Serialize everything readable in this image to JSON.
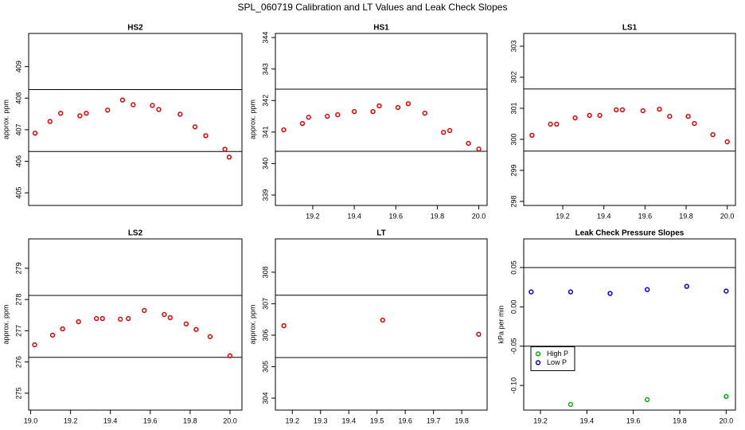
{
  "title": "SPL_060719  Calibration and LT Values and Leak Check Slopes",
  "chart_data": [
    {
      "type": "scatter",
      "title": "HS2",
      "ylabel": "approx. ppm",
      "color": "#e00000",
      "x": [
        19.05,
        19.12,
        19.17,
        19.26,
        19.29,
        19.39,
        19.46,
        19.51,
        19.6,
        19.63,
        19.73,
        19.8,
        19.85,
        19.94,
        19.96
      ],
      "values": [
        406.89,
        407.26,
        407.52,
        407.44,
        407.52,
        407.62,
        407.94,
        407.79,
        407.77,
        407.64,
        407.49,
        407.09,
        406.81,
        406.38,
        406.13
      ],
      "hlines": [
        408.27,
        406.31
      ],
      "xlim": [
        19.02,
        20.02
      ],
      "ylim": [
        404.6,
        410.05
      ],
      "yticks": [
        405,
        406,
        407,
        408,
        409
      ]
    },
    {
      "type": "scatter",
      "title": "HS1",
      "ylabel": "approx. ppm",
      "color": "#e00000",
      "x": [
        19.06,
        19.15,
        19.18,
        19.27,
        19.32,
        19.4,
        19.49,
        19.52,
        19.61,
        19.66,
        19.74,
        19.83,
        19.86,
        19.95,
        20.0
      ],
      "values": [
        341.07,
        341.27,
        341.47,
        341.5,
        341.55,
        341.65,
        341.65,
        341.83,
        341.78,
        341.9,
        341.6,
        340.99,
        341.05,
        340.64,
        340.46
      ],
      "hlines": [
        342.36,
        340.39
      ],
      "xlim": [
        19.02,
        20.04
      ],
      "ylim": [
        338.67,
        344.13
      ],
      "yticks": [
        339,
        340,
        341,
        342,
        343,
        344
      ],
      "xticks": [
        19.2,
        19.4,
        19.6,
        19.8,
        {
          "value": 20,
          "label": "20.0"
        }
      ]
    },
    {
      "type": "scatter",
      "title": "LS1",
      "color": "#e00000",
      "x": [
        19.05,
        19.14,
        19.17,
        19.26,
        19.33,
        19.38,
        19.46,
        19.49,
        19.59,
        19.67,
        19.72,
        19.81,
        19.84,
        19.93,
        20.0
      ],
      "values": [
        300.13,
        300.49,
        300.49,
        300.69,
        300.77,
        300.77,
        300.95,
        300.95,
        300.92,
        300.97,
        300.74,
        300.74,
        300.51,
        300.15,
        299.92
      ],
      "hlines": [
        301.62,
        299.62
      ],
      "xlim": [
        19.01,
        20.04
      ],
      "ylim": [
        297.87,
        303.41
      ],
      "yticks": [
        298,
        299,
        300,
        301,
        302,
        303
      ],
      "xticks": [
        19.2,
        19.4,
        19.6,
        19.8,
        {
          "value": 20,
          "label": "20.0"
        }
      ]
    },
    {
      "type": "scatter",
      "title": "LS2",
      "ylabel": "approx. ppm",
      "color": "#e00000",
      "x": [
        19.02,
        19.11,
        19.16,
        19.24,
        19.33,
        19.36,
        19.45,
        19.49,
        19.57,
        19.67,
        19.7,
        19.78,
        19.83,
        19.9,
        20.0
      ],
      "values": [
        276.55,
        276.86,
        277.06,
        277.29,
        277.39,
        277.39,
        277.37,
        277.39,
        277.65,
        277.52,
        277.42,
        277.22,
        277.04,
        276.81,
        276.2
      ],
      "hlines": [
        278.13,
        276.15
      ],
      "xlim": [
        18.99,
        20.06
      ],
      "ylim": [
        274.46,
        279.94
      ],
      "yticks": [
        275,
        276,
        277,
        278,
        279
      ],
      "xticks": [
        {
          "value": 19,
          "label": "19.0"
        },
        19.2,
        19.4,
        19.6,
        19.8,
        {
          "value": 20,
          "label": "20.0"
        }
      ]
    },
    {
      "type": "scatter",
      "title": "LT",
      "ylabel": "approx. ppm",
      "color": "#e00000",
      "x": [
        19.17,
        19.52,
        19.86
      ],
      "values": [
        306.3,
        306.48,
        306.03
      ],
      "hlines": [
        307.27,
        305.29
      ],
      "xlim": [
        19.14,
        19.89
      ],
      "ylim": [
        303.62,
        309.06
      ],
      "yticks": [
        304,
        305,
        306,
        307,
        308
      ],
      "xticks": [
        19.2,
        19.3,
        19.4,
        19.5,
        19.6,
        19.7,
        19.8
      ]
    },
    {
      "type": "scatter",
      "title": "Leak Check Pressure Slopes",
      "ylabel": "kPa per min",
      "series": [
        {
          "name": "High P",
          "color": "#00b000",
          "x": [
            19.33,
            19.66,
            20.0
          ],
          "values": [
            -0.124,
            -0.118,
            -0.114
          ]
        },
        {
          "name": "Low P",
          "color": "#0000e0",
          "x": [
            19.16,
            19.33,
            19.5,
            19.66,
            19.83,
            20.0
          ],
          "values": [
            0.019,
            0.019,
            0.017,
            0.022,
            0.026,
            0.02
          ]
        }
      ],
      "hlines": [
        0.05,
        -0.05
      ],
      "legend": "center left",
      "xlim": [
        19.128,
        20.04
      ],
      "ylim": [
        -0.1313,
        0.0864
      ],
      "yticks": [
        {
          "value": -0.1,
          "label": "-0.10"
        },
        -0.05,
        {
          "value": 0,
          "label": "0.00"
        },
        0.05
      ],
      "xticks": [
        19.2,
        19.4,
        19.6,
        19.8,
        {
          "value": 20,
          "label": "20.0"
        }
      ]
    }
  ]
}
